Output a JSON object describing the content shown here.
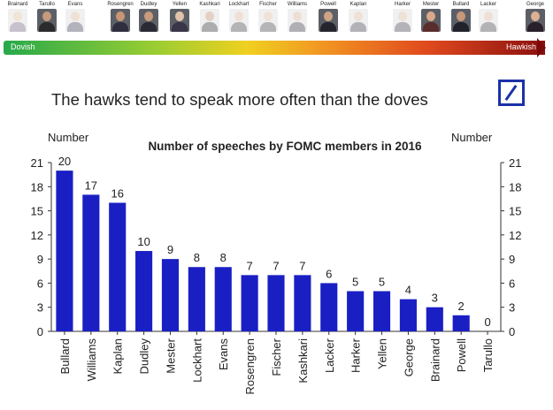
{
  "spectrum": {
    "left_label": "Dovish",
    "right_label": "Hawkish",
    "gradient_colors": [
      "#27a94b",
      "#9acd32",
      "#f0d020",
      "#f19122",
      "#e04a1e",
      "#8b0f0f"
    ]
  },
  "portraits": [
    {
      "name": "Brainard",
      "faded": true,
      "skin": "#d8b89a",
      "suit": "#6e5f7c"
    },
    {
      "name": "Tarullo",
      "faded": false,
      "skin": "#c69a7a",
      "suit": "#2b2b2b"
    },
    {
      "name": "Evans",
      "faded": true,
      "skin": "#d6b190",
      "suit": "#3a3a50"
    },
    {
      "name": "Rosengren",
      "faded": false,
      "skin": "#c89676",
      "suit": "#2e2e3e"
    },
    {
      "name": "Dudley",
      "faded": false,
      "skin": "#c99b7c",
      "suit": "#2a2a35"
    },
    {
      "name": "Yellen",
      "faded": false,
      "skin": "#e1c3aa",
      "suit": "#3a3548"
    },
    {
      "name": "Kashkari",
      "faded": true,
      "skin": "#b9896a",
      "suit": "#2b2b33"
    },
    {
      "name": "Lockhart",
      "faded": true,
      "skin": "#d3b095",
      "suit": "#3c3c44"
    },
    {
      "name": "Fischer",
      "faded": true,
      "skin": "#d7b698",
      "suit": "#3e3e48"
    },
    {
      "name": "Williams",
      "faded": true,
      "skin": "#d1ad90",
      "suit": "#32323c"
    },
    {
      "name": "Powell",
      "faded": false,
      "skin": "#cfa484",
      "suit": "#25252f"
    },
    {
      "name": "Kaplan",
      "faded": true,
      "skin": "#d5b193",
      "suit": "#3a3a44"
    },
    {
      "name": "Harker",
      "faded": true,
      "skin": "#d4b196",
      "suit": "#3b3b46"
    },
    {
      "name": "Mester",
      "faded": false,
      "skin": "#d8a98a",
      "suit": "#5a2c2c"
    },
    {
      "name": "Bullard",
      "faded": false,
      "skin": "#c7987a",
      "suit": "#22222c"
    },
    {
      "name": "Lacker",
      "faded": true,
      "skin": "#d3b094",
      "suit": "#3a3a42"
    },
    {
      "name": "George",
      "faded": false,
      "skin": "#dcb293",
      "suit": "#28202a"
    }
  ],
  "headline": "The hawks tend to speak more often than the doves",
  "chart_data": {
    "type": "bar",
    "title": "Number of speeches by FOMC members in 2016",
    "ylabel_left": "Number",
    "ylabel_right": "Number",
    "ylim": [
      0,
      21
    ],
    "yticks": [
      0,
      3,
      6,
      9,
      12,
      15,
      18,
      21
    ],
    "grid": false,
    "bar_color": "#1a1fc4",
    "categories": [
      "Bullard",
      "Williams",
      "Kaplan",
      "Dudley",
      "Mester",
      "Lockhart",
      "Evans",
      "Rosengren",
      "Fischer",
      "Kashkari",
      "Lacker",
      "Harker",
      "Yellen",
      "George",
      "Brainard",
      "Powell",
      "Tarullo"
    ],
    "values": [
      20,
      17,
      16,
      10,
      9,
      8,
      8,
      7,
      7,
      7,
      6,
      5,
      5,
      4,
      3,
      2,
      0
    ]
  }
}
